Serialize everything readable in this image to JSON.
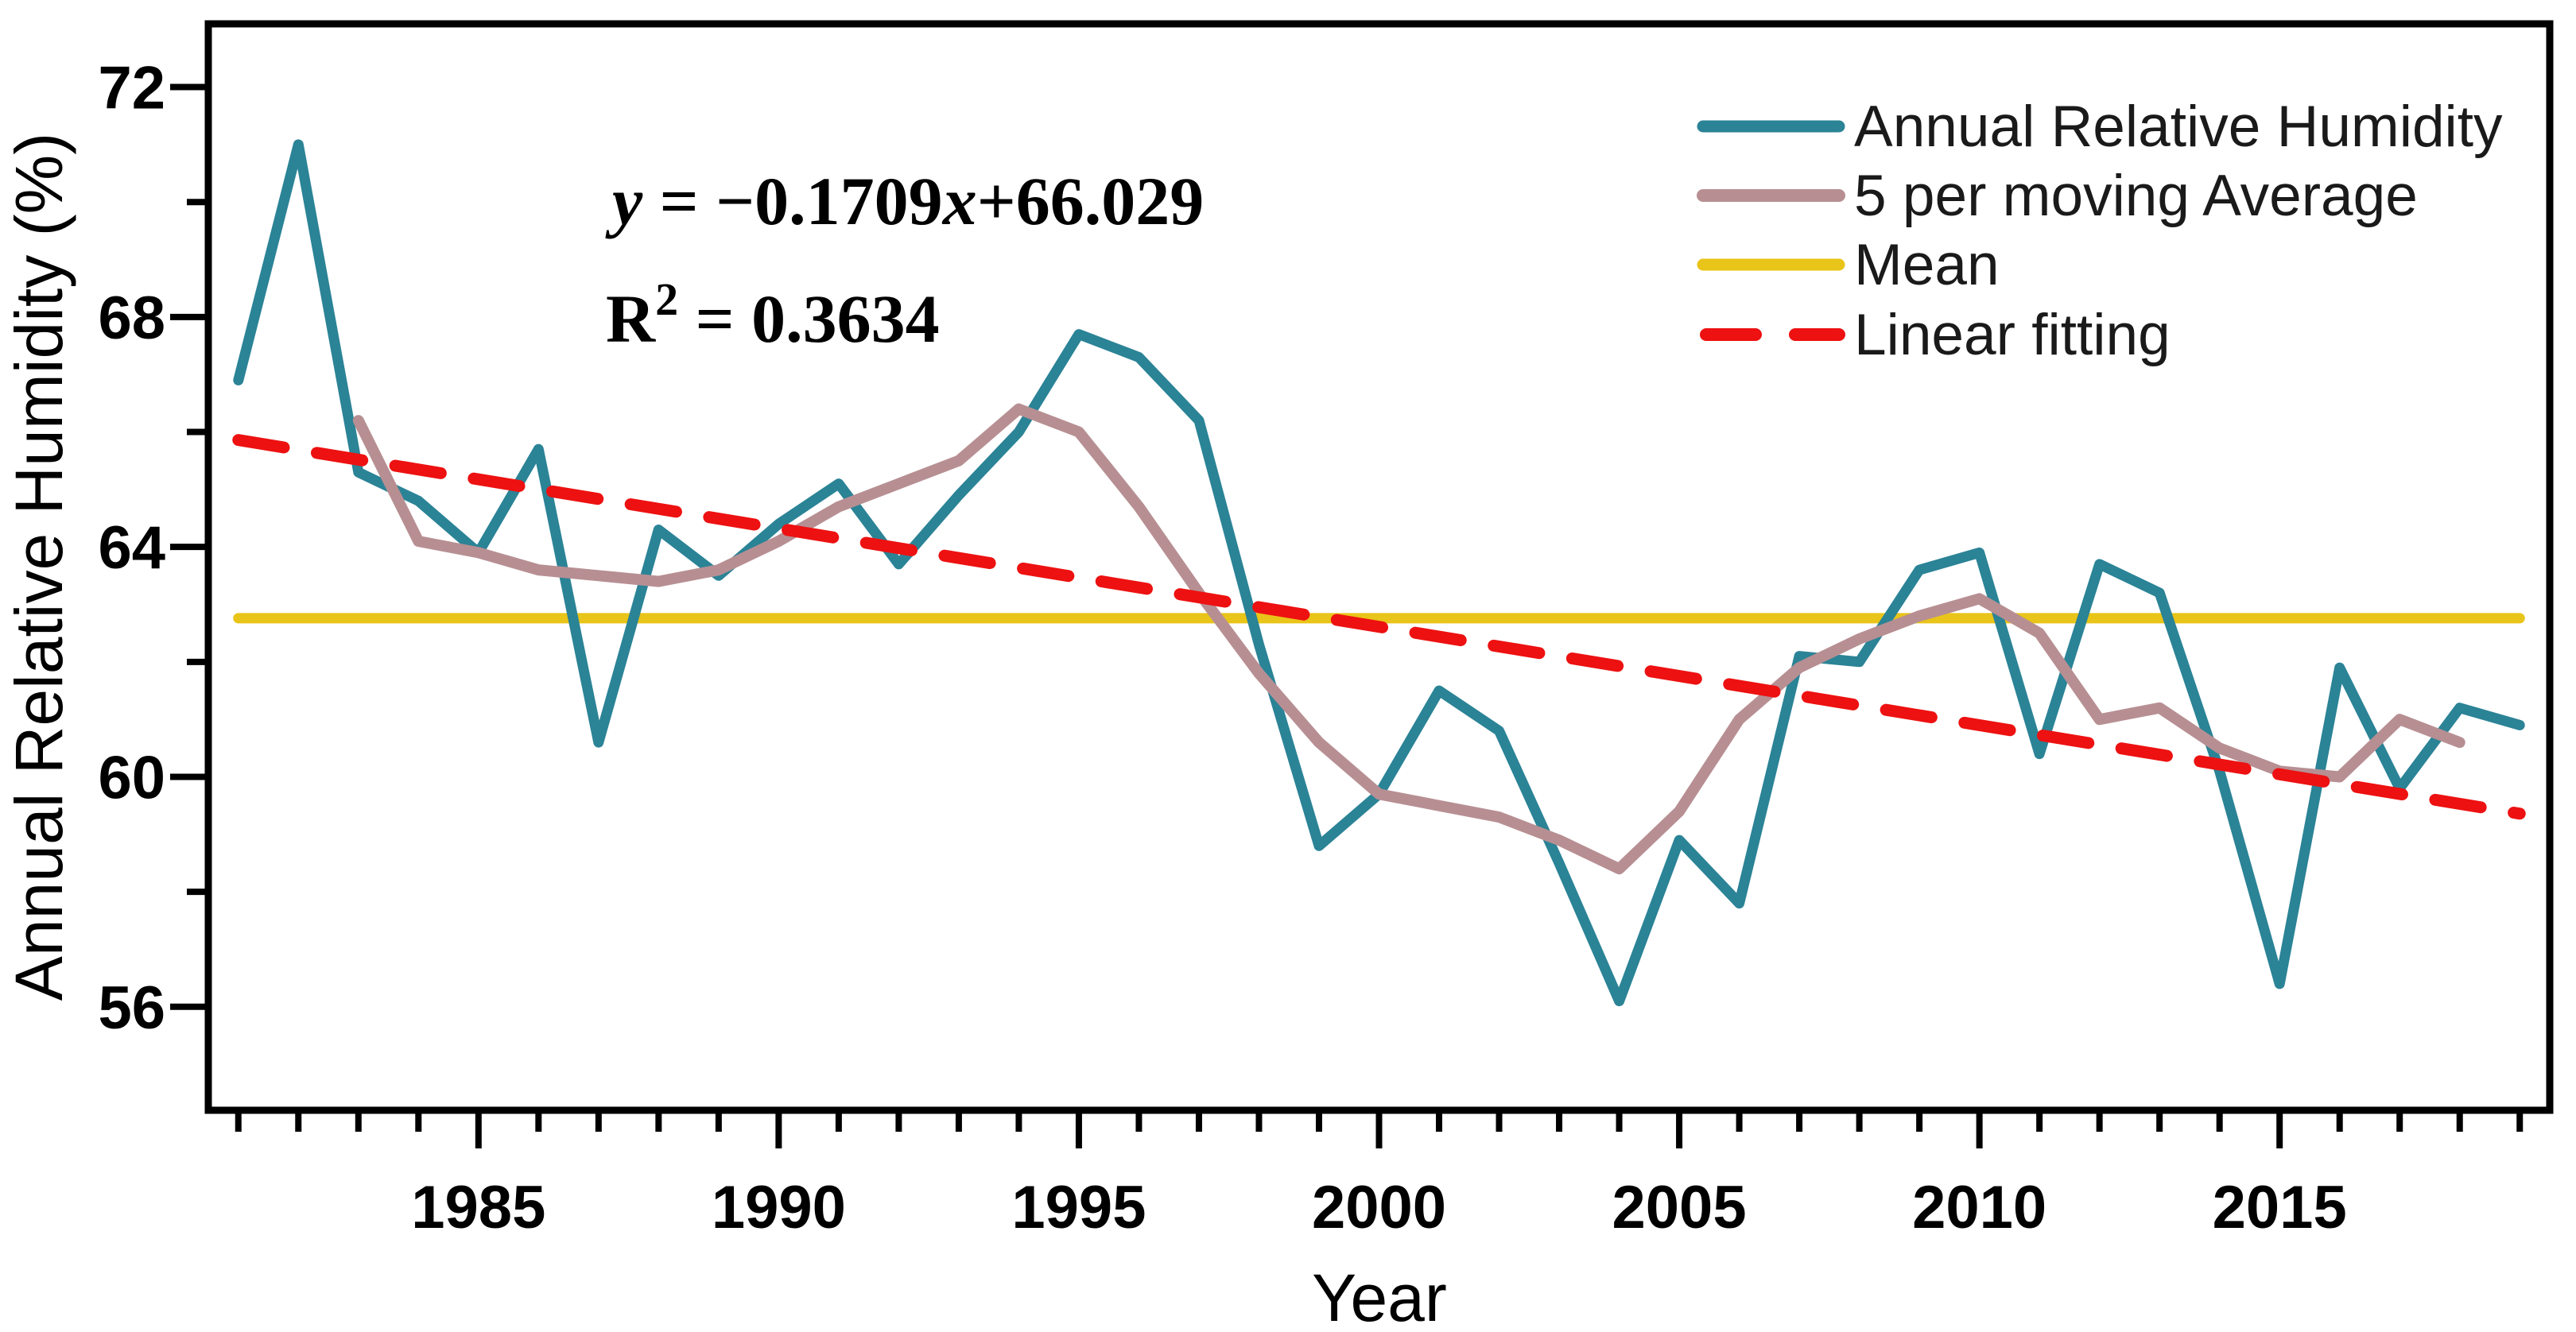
{
  "chart_data": {
    "type": "line",
    "title": "",
    "xlabel": "Year",
    "ylabel": "Annual Relative Humidity (%)",
    "xlim": [
      1980.5,
      2019.5
    ],
    "ylim": [
      54.2,
      73.1
    ],
    "x_ticks_labeled": [
      1985,
      1990,
      1995,
      2000,
      2005,
      2010,
      2015
    ],
    "x_minor_tick_step": 1,
    "y_ticks_labeled": [
      72,
      68,
      64,
      60,
      56
    ],
    "y_minor_tick_step": 2,
    "grid": "off",
    "legend_position": "top-right-inside",
    "annotation": {
      "lhs": "y",
      "eq_mid": " = −0.1709",
      "var": "x",
      "eq_rest": "+66.029",
      "r2_base": "R",
      "r2_sup": "2",
      "r2_rest": " = 0.3634"
    },
    "series": [
      {
        "name": "Annual Relative Humidity",
        "color": "#2b8396",
        "x": [
          1981,
          1982,
          1983,
          1984,
          1985,
          1986,
          1987,
          1988,
          1989,
          1990,
          1991,
          1992,
          1993,
          1994,
          1995,
          1996,
          1997,
          1998,
          1999,
          2000,
          2001,
          2002,
          2003,
          2004,
          2005,
          2006,
          2007,
          2008,
          2009,
          2010,
          2011,
          2012,
          2013,
          2014,
          2015,
          2016,
          2017,
          2018,
          2019
        ],
        "values": [
          66.9,
          71.0,
          65.3,
          64.8,
          63.9,
          65.7,
          60.6,
          64.3,
          63.5,
          64.4,
          65.1,
          63.7,
          64.9,
          66.0,
          67.7,
          67.3,
          66.2,
          62.3,
          58.8,
          59.7,
          61.5,
          60.8,
          58.5,
          56.1,
          58.9,
          57.8,
          62.1,
          62.0,
          63.6,
          63.9,
          60.4,
          63.7,
          63.2,
          60.1,
          56.4,
          61.9,
          59.8,
          61.2,
          60.9
        ]
      },
      {
        "name": "5 per moving Average",
        "color": "#b78f93",
        "x": [
          1983,
          1984,
          1985,
          1986,
          1987,
          1988,
          1989,
          1990,
          1991,
          1992,
          1993,
          1994,
          1995,
          1996,
          1997,
          1998,
          1999,
          2000,
          2001,
          2002,
          2003,
          2004,
          2005,
          2006,
          2007,
          2008,
          2009,
          2010,
          2011,
          2012,
          2013,
          2014,
          2015,
          2016,
          2017,
          2018
        ],
        "values": [
          66.2,
          64.1,
          63.9,
          63.6,
          63.5,
          63.4,
          63.6,
          64.1,
          64.7,
          65.1,
          65.5,
          66.4,
          66.0,
          64.7,
          63.2,
          61.8,
          60.6,
          59.7,
          59.5,
          59.3,
          58.9,
          58.4,
          59.4,
          61.0,
          61.9,
          62.4,
          62.8,
          63.1,
          62.5,
          61.0,
          61.2,
          60.5,
          60.1,
          60.0,
          61.0,
          60.6
        ]
      },
      {
        "name": "Mean",
        "color": "#e9c419",
        "type": "mean",
        "value": 62.76,
        "x_span": [
          1981,
          2019
        ]
      },
      {
        "name": "Linear fitting",
        "color": "#ed1111",
        "type": "fit",
        "slope": -0.1709,
        "intercept": 66.029,
        "start": [
          1981,
          65.86
        ],
        "end": [
          2019,
          59.36
        ]
      }
    ]
  }
}
